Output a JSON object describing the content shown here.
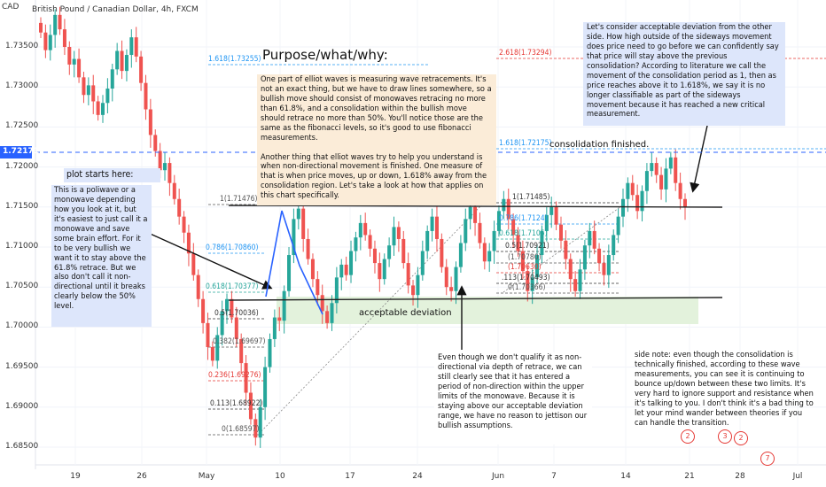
{
  "header": {
    "currency": "CAD",
    "symbol_title": "British Pound / Canadian Dollar, 4h, FXCM"
  },
  "price_axis": {
    "labels": [
      "1.73500",
      "1.73000",
      "1.72500",
      "1.72000",
      "1.71500",
      "1.71000",
      "1.70500",
      "1.70000",
      "1.69500",
      "1.69000",
      "1.68500"
    ],
    "current_price": "1.72171",
    "current_color": "#2962ff"
  },
  "time_axis": {
    "labels": [
      "19",
      "26",
      "May",
      "10",
      "17",
      "24",
      "Jun",
      "7",
      "14",
      "21",
      "28",
      "Jul"
    ]
  },
  "fib_retracement_left": {
    "color": "#444",
    "levels": [
      {
        "label": "1.618(1.73255)",
        "color": "#2196f3"
      },
      {
        "label": "1(1.71476)",
        "color": "#555"
      },
      {
        "label": "0.786(1.70860)",
        "color": "#2196f3"
      },
      {
        "label": "0.618(1.70377)",
        "color": "#26a69a"
      },
      {
        "label": "0.5(1.70036)",
        "color": "#333"
      },
      {
        "label": "0.382(1.69697)",
        "color": "#555"
      },
      {
        "label": "0.236(1.69276)",
        "color": "#e53935"
      },
      {
        "label": "0.113(1.68922)",
        "color": "#333"
      },
      {
        "label": "0(1.68597)",
        "color": "#555"
      }
    ]
  },
  "fib_retracement_right": {
    "levels": [
      {
        "label": "2.618(1.73294)",
        "color": "#e53935"
      },
      {
        "label": "1.618(1.72175)",
        "color": "#2196f3"
      },
      {
        "label": "1(1.71485)",
        "color": "#333"
      },
      {
        "label": "0.786(1.7124)",
        "color": "#2196f3"
      },
      {
        "label": "0.618(1.7105)",
        "color": "#26a69a"
      },
      {
        "label": "0.5(1.70921)",
        "color": "#333"
      },
      {
        "label": "(1.70780)",
        "color": "#555"
      },
      {
        "label": "(1.70630)",
        "color": "#e53935"
      },
      {
        "label": ".113(1.70493)",
        "color": "#333"
      },
      {
        "label": "0(1.70366)",
        "color": "#555"
      }
    ]
  },
  "annotations": {
    "purpose_title": "Purpose/what/why:",
    "purpose_text": "One part of elliot waves is measuring wave retracements. It's not an exact thing, but we have to draw lines somewhere, so a bullish move should consist of monowaves retracing no more than 61.8%, and a consolidation within the bullish move should retrace no more than 50%. You'll notice those are the same as the fibonacci levels, so it's good to use fibonacci measurements.\n\nAnother thing that elliot waves try to help you understand is when non-directional movement is finished. One measure of that is when price moves, up or down, 1.618% away from the consolidation region. Let's take a look at how that applies on this chart specifically.",
    "plot_title": "plot starts here:",
    "plot_text": "This is a poliwave or a monowave depending how you look at it, but it's easiest to just call it a monowave and save some brain effort. For it to be very bullish we want it to stay above the 61.8% retrace. But we also don't call it non-directional until it breaks clearly below the 50% level.",
    "deviation_text": "Let's consider acceptable deviation from the other side. How high outside of the sideways movement does price need to go before we can confidently say that price will stay above the previous consolidation? According to literature we call the movement of the consolidation period as 1, then as price reaches above it to 1.618%, we say it is no longer classifiable as part of the sideways movement because it has reached a new critical measurement.",
    "consolidation_finished": "consolidation finished.",
    "acceptable_deviation": "acceptable deviation",
    "qualify_text": "Even though we don't qualify it as non-directional via depth of retrace, we can still clearly see that it has entered a period of non-direction within the upper limits of the monowave. Because it is staying above our acceptable deviation range, we have no reason to jettison our bullish assumptions.",
    "side_note": "side note: even though the consolidation is technically finished, according to these wave measurements, you can see it is continuing to bounce up/down between these two limits. It's very hard to ignore support and resistance when it's talking to you. I don't think it's a bad thing to let your mind wander between theories if you can handle the transition."
  },
  "event_badges": [
    "2",
    "3",
    "2",
    "7"
  ],
  "colors": {
    "up": "#26a69a",
    "down": "#ef5350",
    "note_blue": "#dde6fb",
    "note_orange": "#fbecd8",
    "deviation_zone": "#e3f2dc"
  },
  "chart_data": {
    "type": "candlestick",
    "title": "British Pound / Canadian Dollar, 4h, FXCM",
    "xlabel": "",
    "ylabel": "",
    "ylim": [
      1.6835,
      1.7395
    ],
    "x_ticks": [
      "19",
      "26",
      "May",
      "10",
      "17",
      "24",
      "Jun",
      "7",
      "14",
      "21",
      "28",
      "Jul"
    ],
    "series": [
      {
        "values": [
          1.7368,
          1.7346,
          1.7365,
          1.739,
          1.7372,
          1.735,
          1.7328,
          1.7335,
          1.7312,
          1.729,
          1.7302,
          1.7282,
          1.7265,
          1.728,
          1.7298,
          1.7322,
          1.7345,
          1.732,
          1.734,
          1.7362,
          1.7338,
          1.7305,
          1.7272,
          1.724,
          1.722,
          1.7196,
          1.7205,
          1.718,
          1.716,
          1.7138,
          1.7118,
          1.7092,
          1.7065,
          1.7035,
          1.7005,
          1.6975,
          1.6958,
          1.699,
          1.702,
          1.7035,
          1.7012,
          1.6985,
          1.6955,
          1.6918,
          1.6885,
          1.6862,
          1.69,
          1.695,
          1.6985,
          1.7012,
          1.7008,
          1.7045,
          1.709,
          1.7135,
          1.7148,
          1.711,
          1.7085,
          1.706,
          1.704,
          1.702,
          1.7005,
          1.703,
          1.7062,
          1.7078,
          1.7065,
          1.7095,
          1.7112,
          1.713,
          1.7115,
          1.7098,
          1.708,
          1.706,
          1.7085,
          1.7102,
          1.7125,
          1.711,
          1.708,
          1.7052,
          1.704,
          1.7065,
          1.7095,
          1.712,
          1.7138,
          1.711,
          1.7075,
          1.705,
          1.7045,
          1.7075,
          1.7105,
          1.7135,
          1.715,
          1.713,
          1.7105,
          1.7082,
          1.7095,
          1.712,
          1.7145,
          1.716,
          1.7135,
          1.7115,
          1.7095,
          1.707,
          1.7045,
          1.7062,
          1.709,
          1.712,
          1.714,
          1.715,
          1.7128,
          1.7108,
          1.7085,
          1.706,
          1.7045,
          1.7072,
          1.7102,
          1.712,
          1.7098,
          1.708,
          1.7065,
          1.709,
          1.7115,
          1.7138,
          1.716,
          1.718,
          1.7165,
          1.7145,
          1.717,
          1.7195,
          1.7205,
          1.719,
          1.7172,
          1.7198,
          1.7212,
          1.718,
          1.716,
          1.715
        ]
      }
    ]
  }
}
